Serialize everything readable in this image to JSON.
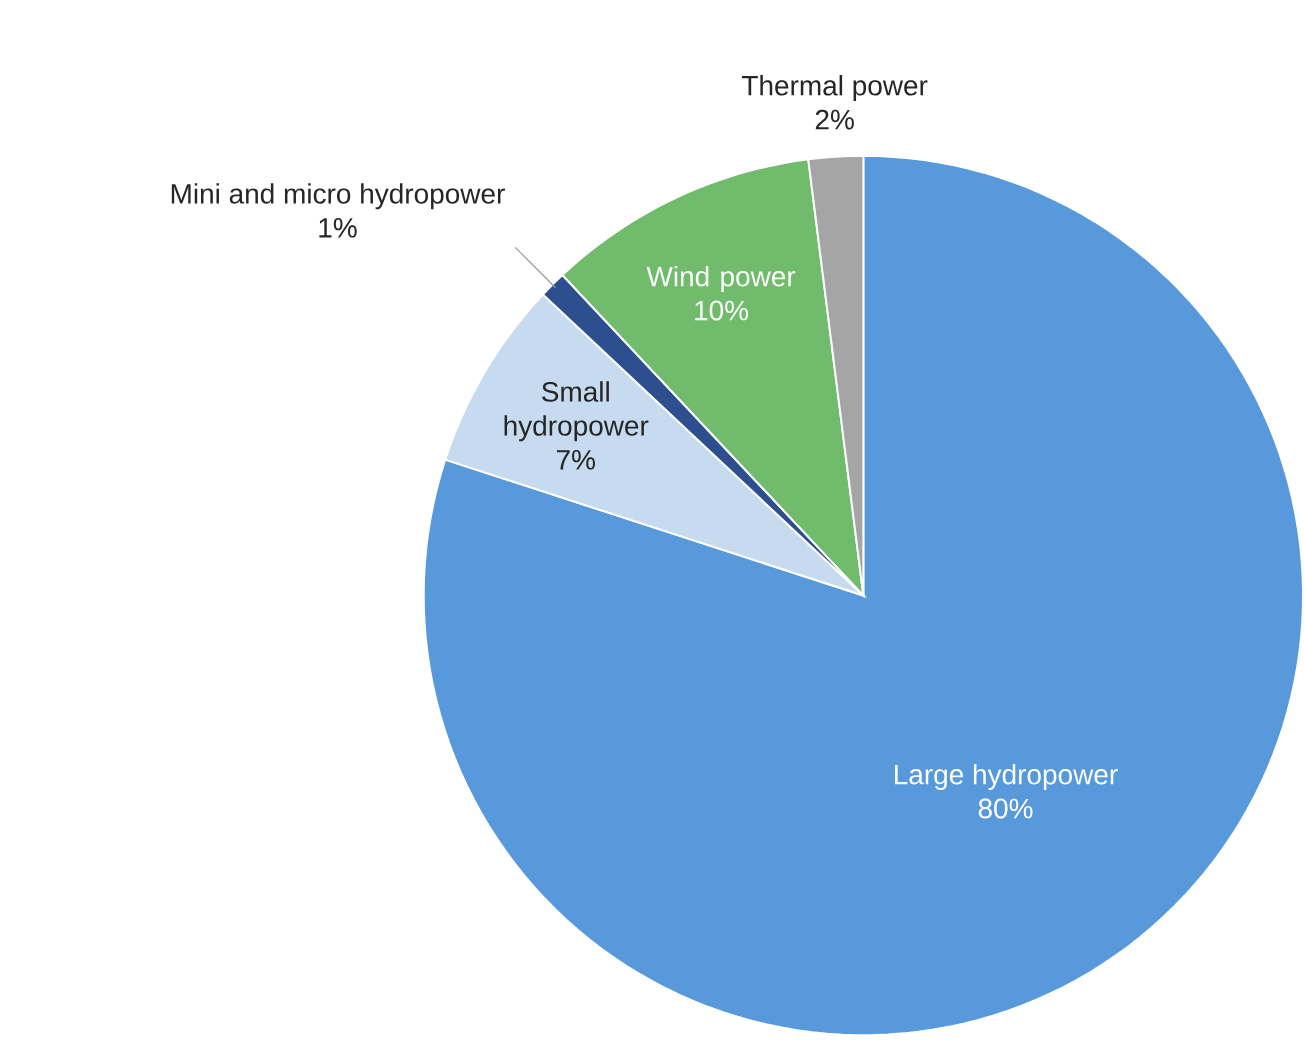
{
  "chart_data": {
    "type": "pie",
    "categories": [
      "Large hydropower",
      "Small hydropower",
      "Mini and micro hydropower",
      "Wind power",
      "Thermal power"
    ],
    "values": [
      80,
      7,
      1,
      10,
      2
    ],
    "colors": [
      "#5899dc",
      "#c6dbf0",
      "#2e4f8f",
      "#70bb6c",
      "#a5a5a5"
    ],
    "value_labels": [
      "80%",
      "7%",
      "1%",
      "10%",
      "2%"
    ]
  }
}
